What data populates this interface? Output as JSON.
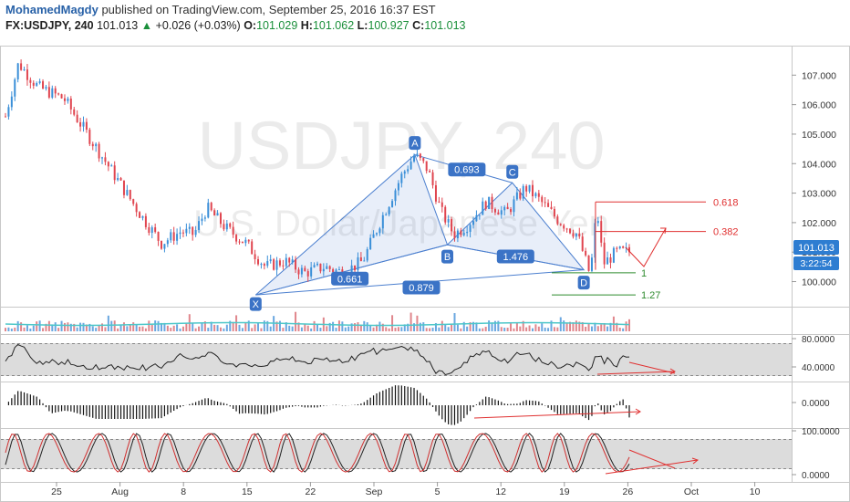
{
  "header": {
    "author": "MohamedMagdy",
    "published": " published on TradingView.com, September 25, 2016 16:37 EST",
    "symbol": "FX:USDJPY, 240",
    "last": "101.013",
    "change_arrow": "▲",
    "change": "+0.026 (+0.03%)",
    "o_label": "O:",
    "o": "101.029",
    "h_label": "H:",
    "h": "101.062",
    "l_label": "L:",
    "l": "100.927",
    "c_label": "C:",
    "c": "101.013"
  },
  "watermark": {
    "symbol": "USDJPY, 240",
    "name": "U.S. Dollar/Japanese Yen"
  },
  "colors": {
    "up": "#3a8fd8",
    "down": "#e0454f",
    "pattern": "#4b7fcf",
    "fib_red": "#e03030",
    "fib_green": "#2e8b2e",
    "osc": "#222222",
    "stoch_k": "#d03030"
  },
  "chart_data": {
    "type": "candlestick",
    "y_axis": {
      "ticks": [
        "100.000",
        "101.000",
        "102.000",
        "103.000",
        "104.000",
        "105.000",
        "106.000",
        "107.000"
      ],
      "range": [
        99.15,
        108.0
      ]
    },
    "x_axis": {
      "ticks": [
        "25",
        "Aug",
        "8",
        "15",
        "22",
        "Sep",
        "5",
        "12",
        "19",
        "26",
        "Oct",
        "10"
      ]
    },
    "last_price_label": "101.013",
    "countdown_label": "3:22:54",
    "price_path": [
      {
        "t": 0,
        "p": 105.6
      },
      {
        "t": 2,
        "p": 107.4
      },
      {
        "t": 5,
        "p": 106.6
      },
      {
        "t": 9,
        "p": 106.2
      },
      {
        "t": 12,
        "p": 105.2
      },
      {
        "t": 15,
        "p": 104.2
      },
      {
        "t": 18,
        "p": 103.2
      },
      {
        "t": 21,
        "p": 102.2
      },
      {
        "t": 24,
        "p": 101.3
      },
      {
        "t": 27,
        "p": 101.7
      },
      {
        "t": 29,
        "p": 101.6
      },
      {
        "t": 31,
        "p": 102.5
      },
      {
        "t": 34,
        "p": 101.8
      },
      {
        "t": 37,
        "p": 101.3
      },
      {
        "t": 40,
        "p": 100.5
      },
      {
        "t": 43,
        "p": 100.7
      },
      {
        "t": 46,
        "p": 100.3
      },
      {
        "t": 49,
        "p": 100.5
      },
      {
        "t": 52,
        "p": 100.3
      },
      {
        "t": 55,
        "p": 100.7
      },
      {
        "t": 58,
        "p": 102.2
      },
      {
        "t": 61,
        "p": 103.6
      },
      {
        "t": 63,
        "p": 104.3
      },
      {
        "t": 65,
        "p": 103.8
      },
      {
        "t": 67,
        "p": 102.4
      },
      {
        "t": 69,
        "p": 101.6
      },
      {
        "t": 71,
        "p": 101.9
      },
      {
        "t": 74,
        "p": 102.7
      },
      {
        "t": 77,
        "p": 102.3
      },
      {
        "t": 80,
        "p": 103.2
      },
      {
        "t": 82,
        "p": 102.8
      },
      {
        "t": 85,
        "p": 102.1
      },
      {
        "t": 88,
        "p": 101.6
      },
      {
        "t": 90,
        "p": 100.2
      },
      {
        "t": 91,
        "p": 102.5
      },
      {
        "t": 92,
        "p": 100.6
      },
      {
        "t": 94,
        "p": 101.0
      },
      {
        "t": 96,
        "p": 101.013
      }
    ],
    "harmonic_pattern": {
      "points": [
        {
          "label": "X",
          "t": 38.5,
          "p": 99.55
        },
        {
          "label": "A",
          "t": 63,
          "p": 104.3
        },
        {
          "label": "B",
          "t": 68,
          "p": 101.25
        },
        {
          "label": "C",
          "t": 78,
          "p": 103.35
        },
        {
          "label": "D",
          "t": 89,
          "p": 100.4
        }
      ],
      "ratios": [
        {
          "label": "0.661",
          "t": 53,
          "p": 100.1
        },
        {
          "label": "0.693",
          "t": 71,
          "p": 103.8
        },
        {
          "label": "1.476",
          "t": 78.5,
          "p": 100.85
        },
        {
          "label": "0.879",
          "t": 64,
          "p": 99.8
        }
      ]
    },
    "fib_levels": [
      {
        "label": "0.618",
        "p": 102.7,
        "color": "red"
      },
      {
        "label": "0.382",
        "p": 101.7,
        "color": "red"
      },
      {
        "label": "1",
        "p": 100.3,
        "color": "green"
      },
      {
        "label": "1.27",
        "p": 99.55,
        "color": "green"
      }
    ],
    "indicators": {
      "rsi_ticks": [
        "80.0000",
        "40.0000"
      ],
      "macd_ticks": [
        "0.0000"
      ],
      "stoch_ticks": [
        "100.0000",
        "0.0000"
      ]
    }
  }
}
